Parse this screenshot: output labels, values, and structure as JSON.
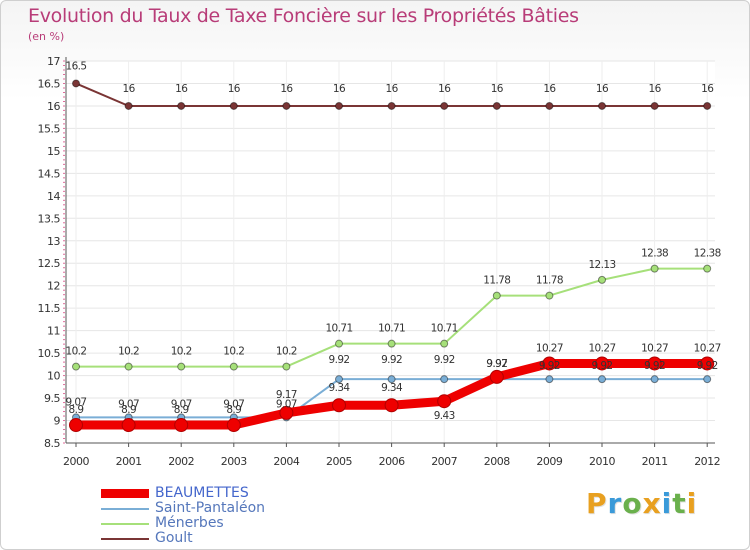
{
  "title": "Evolution du Taux de Taxe Foncière sur les Propriétés Bâties",
  "subtitle": "(en %)",
  "brand": {
    "letters": [
      "P",
      "r",
      "o",
      "x",
      "i",
      "t",
      "i"
    ],
    "colors": [
      "#e8a020",
      "#3a9ad9",
      "#6ab04c",
      "#e8a020",
      "#3a9ad9",
      "#6ab04c",
      "#e8a020"
    ]
  },
  "chart_data": {
    "type": "line",
    "title": "Evolution du Taux de Taxe Foncière sur les Propriétés Bâties",
    "ylabel": "(en %)",
    "xlabel": "",
    "categories": [
      "2000",
      "2001",
      "2002",
      "2003",
      "2004",
      "2005",
      "2006",
      "2007",
      "2008",
      "2009",
      "2010",
      "2011",
      "2012"
    ],
    "ylim": [
      8.5,
      17
    ],
    "yticks": [
      "8.5",
      "9",
      "9.5",
      "10",
      "10.5",
      "11",
      "11.5",
      "12",
      "12.5",
      "13",
      "13.5",
      "14",
      "14.5",
      "15",
      "15.5",
      "16",
      "16.5",
      "17"
    ],
    "grid": true,
    "legend_position": "bottom-left",
    "series": [
      {
        "name": "BEAUMETTES",
        "color": "#ee0000",
        "values": [
          8.9,
          8.9,
          8.9,
          8.9,
          9.17,
          9.34,
          9.34,
          9.43,
          9.97,
          10.27,
          10.27,
          10.27,
          10.27
        ],
        "labels": [
          "8.9",
          "8.9",
          "8.9",
          "8.9",
          "9.17",
          "9.34",
          "9.34",
          "9.43",
          "9.97",
          "10.27",
          "10.27",
          "10.27",
          "10.27"
        ]
      },
      {
        "name": "Saint-Pantaléon",
        "color": "#7aaed6",
        "values": [
          9.07,
          9.07,
          9.07,
          9.07,
          9.07,
          9.92,
          9.92,
          9.92,
          9.92,
          9.92,
          9.92,
          9.92,
          9.92
        ],
        "labels": [
          "9.07",
          "9.07",
          "9.07",
          "9.07",
          "9.07",
          "9.92",
          "9.92",
          "9.92",
          "9.92",
          "9.92",
          "9.92",
          "9.92",
          "9.92"
        ]
      },
      {
        "name": "Ménerbes",
        "color": "#a6e07a",
        "values": [
          10.2,
          10.2,
          10.2,
          10.2,
          10.2,
          10.71,
          10.71,
          10.71,
          11.78,
          11.78,
          12.13,
          12.38,
          12.38
        ],
        "labels": [
          "10.2",
          "10.2",
          "10.2",
          "10.2",
          "10.2",
          "10.71",
          "10.71",
          "10.71",
          "11.78",
          "11.78",
          "12.13",
          "12.38",
          "12.38"
        ]
      },
      {
        "name": "Goult",
        "color": "#7a3535",
        "values": [
          16.5,
          16,
          16,
          16,
          16,
          16,
          16,
          16,
          16,
          16,
          16,
          16,
          16
        ],
        "labels": [
          "16.5",
          "16",
          "16",
          "16",
          "16",
          "16",
          "16",
          "16",
          "16",
          "16",
          "16",
          "16",
          "16"
        ]
      }
    ]
  }
}
